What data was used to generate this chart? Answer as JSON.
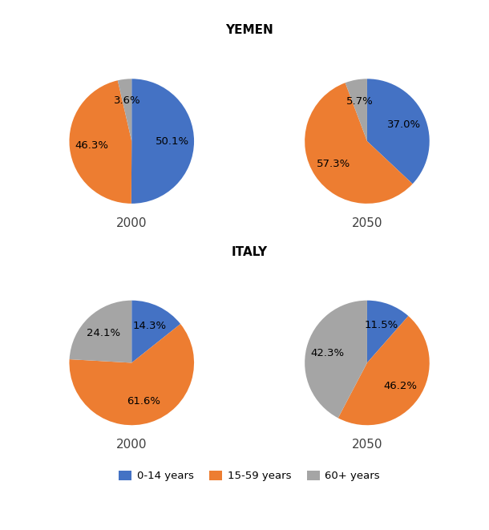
{
  "title_yemen": "YEMEN",
  "title_italy": "ITALY",
  "colors": {
    "0-14 years": "#4472C4",
    "15-59 years": "#ED7D31",
    "60+ years": "#A5A5A5"
  },
  "datasets": {
    "yemen_2000": {
      "0-14 years": 50.1,
      "15-59 years": 46.3,
      "60+ years": 3.6
    },
    "yemen_2050": {
      "0-14 years": 37.0,
      "15-59 years": 57.3,
      "60+ years": 5.7
    },
    "italy_2000": {
      "0-14 years": 14.3,
      "15-59 years": 61.6,
      "60+ years": 24.1
    },
    "italy_2050": {
      "0-14 years": 11.5,
      "15-59 years": 46.2,
      "60+ years": 42.3
    }
  },
  "legend_labels": [
    "0-14 years",
    "15-59 years",
    "60+ years"
  ],
  "startangles": [
    90,
    90,
    90,
    90
  ],
  "label_fontsize": 9.5,
  "year_fontsize": 11,
  "title_fontsize": 11,
  "pctdistance": 0.65
}
